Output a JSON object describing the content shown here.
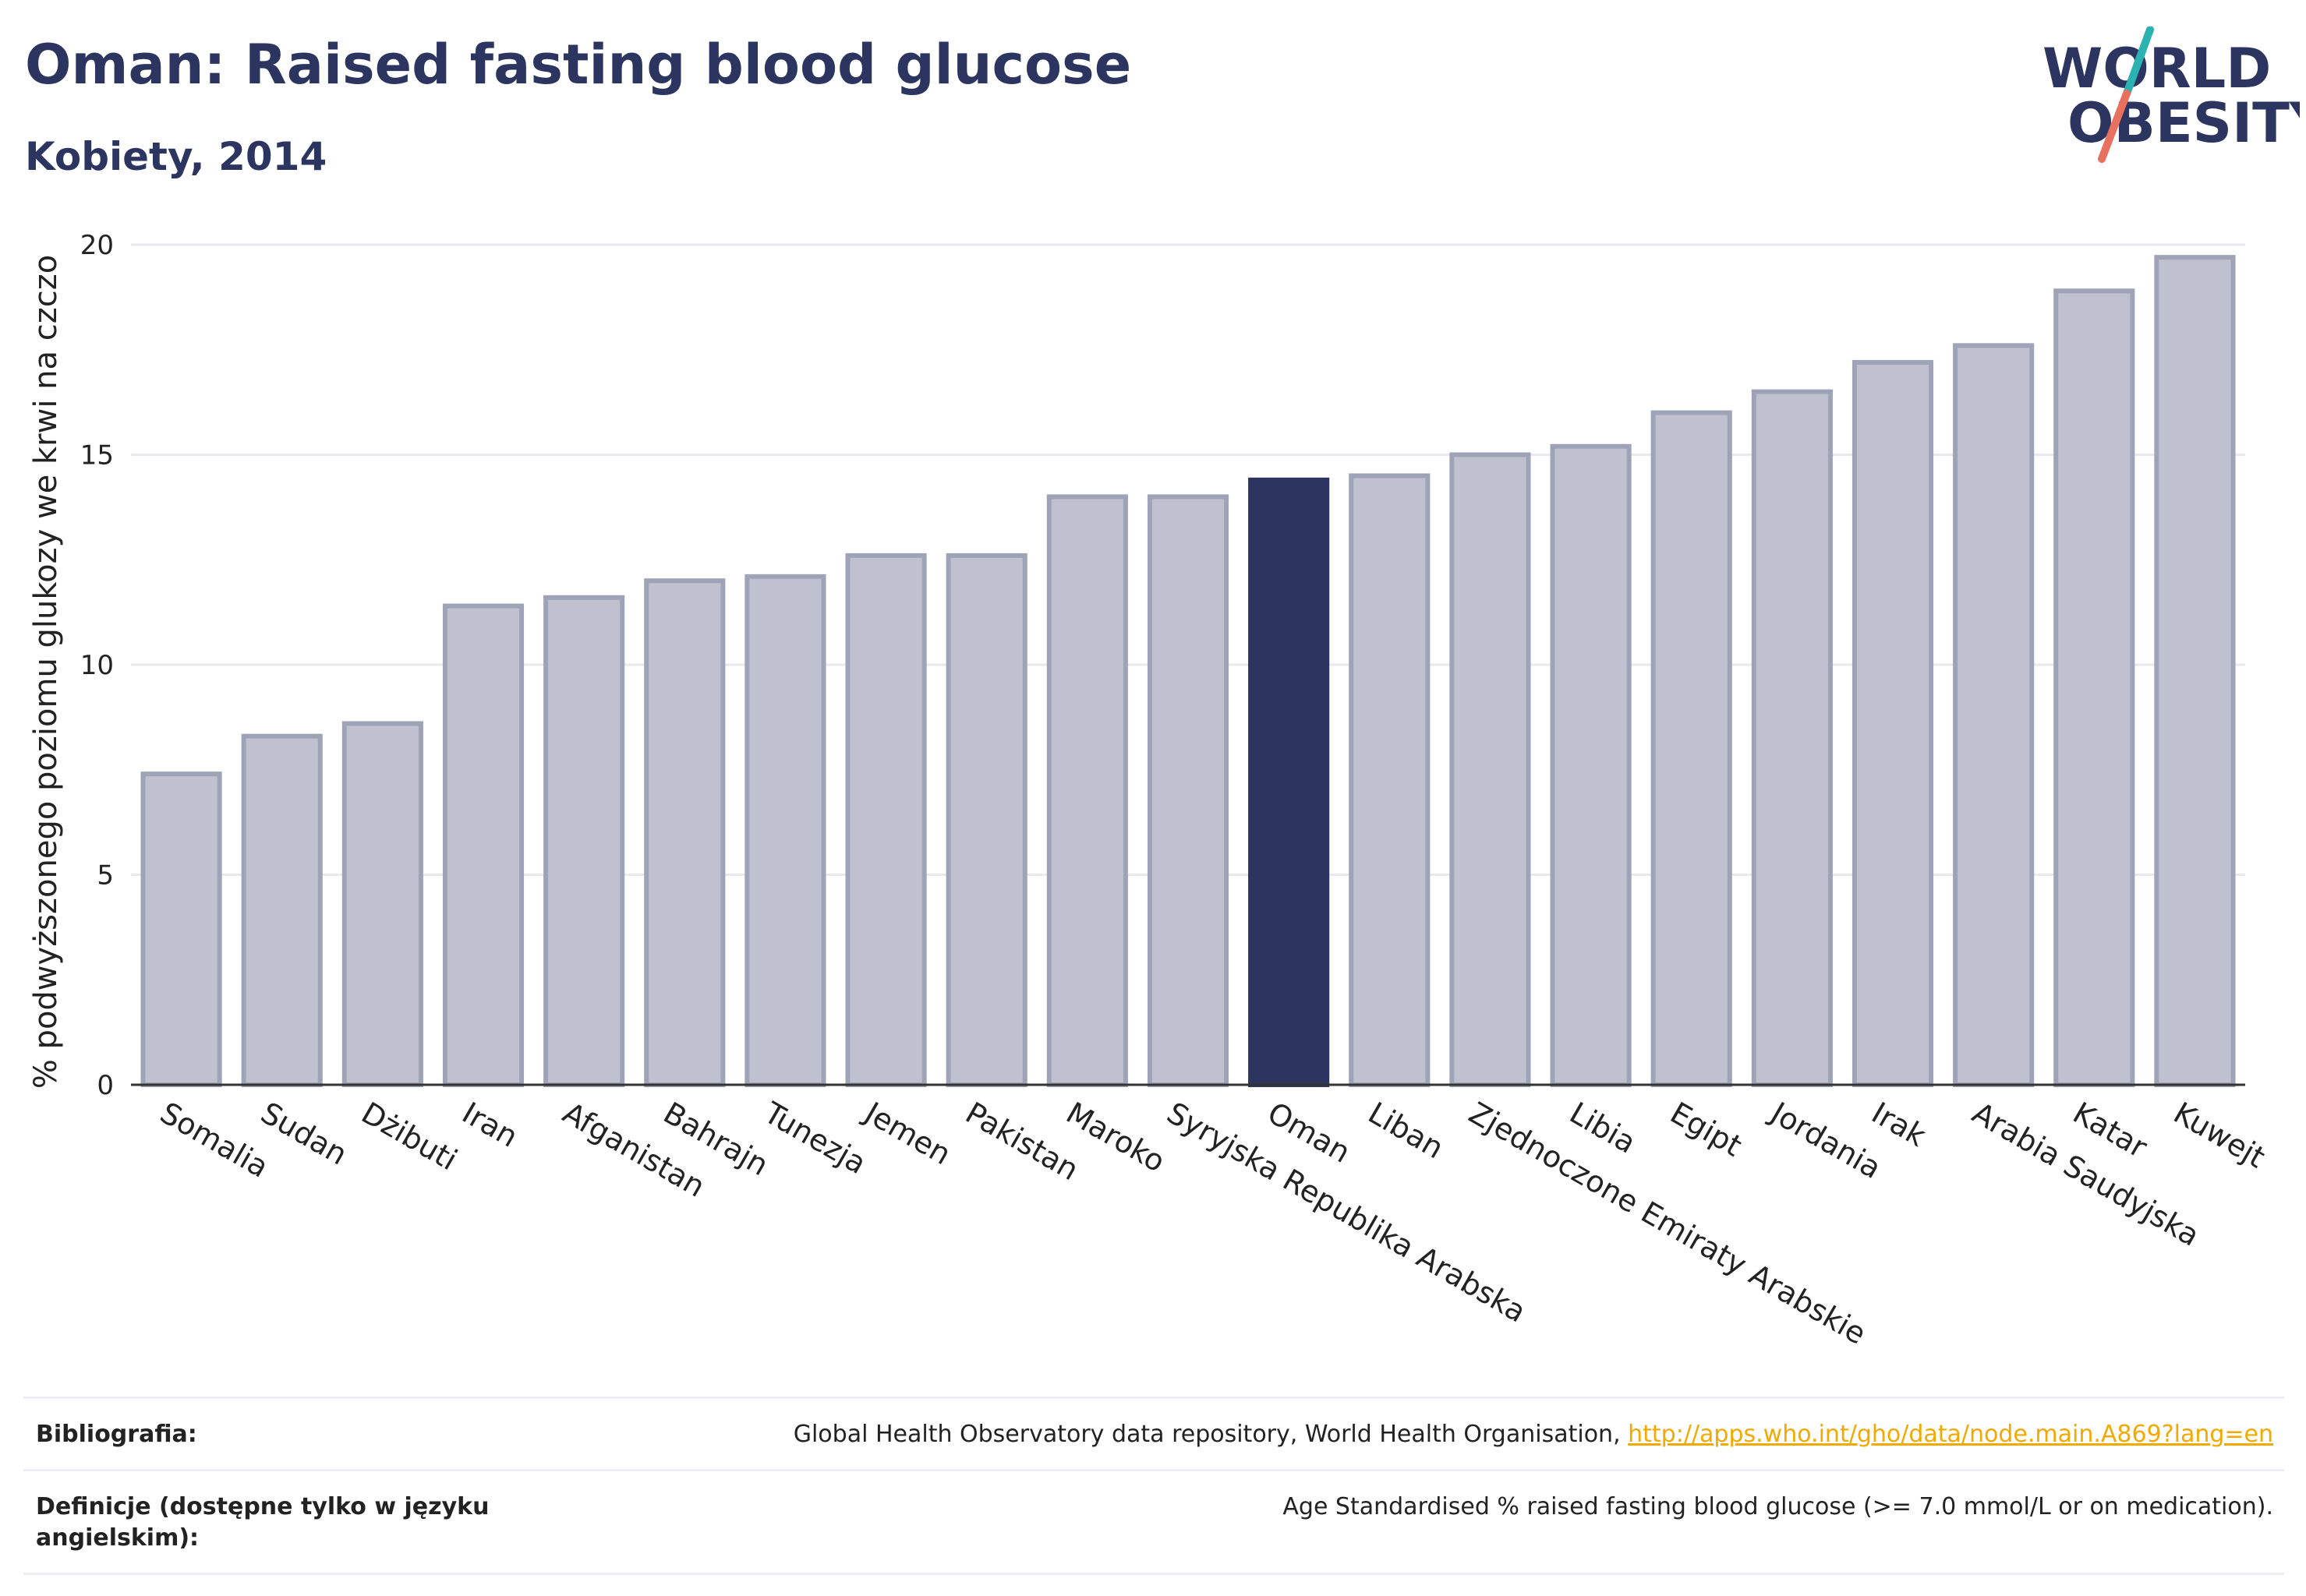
{
  "header": {
    "title": "Oman: Raised fasting blood glucose",
    "subtitle": "Kobiety, 2014"
  },
  "logo": {
    "line1": "WORLD",
    "line2": "OBESITY",
    "colors": {
      "text": "#2b3560",
      "slash_teal": "#2bb3b1",
      "slash_coral": "#e8705e"
    }
  },
  "chart_data": {
    "type": "bar",
    "title": "Oman: Raised fasting blood glucose",
    "subtitle": "Kobiety, 2014",
    "ylabel": "% podwyższonego poziomu glukozy we krwi na czczo",
    "xlabel": "",
    "ylim": [
      0,
      20
    ],
    "yticks": [
      0,
      5,
      10,
      15,
      20
    ],
    "grid": true,
    "highlight": "Oman",
    "colors": {
      "bar": "#bfc2ce",
      "bar_edge": "#9ea3b8",
      "highlight": "#2b3560",
      "grid": "#e9e9ee",
      "axis": "#333333"
    },
    "categories": [
      "Somalia",
      "Sudan",
      "Dżibuti",
      "Iran",
      "Afganistan",
      "Bahrajn",
      "Tunezja",
      "Jemen",
      "Pakistan",
      "Maroko",
      "Syryjska Republika Arabska",
      "Oman",
      "Liban",
      "Zjednoczone Emiraty Arabskie",
      "Libia",
      "Egipt",
      "Jordania",
      "Irak",
      "Arabia Saudyjska",
      "Katar",
      "Kuwejt"
    ],
    "values": [
      7.4,
      8.3,
      8.6,
      11.4,
      11.6,
      12.0,
      12.1,
      12.6,
      12.6,
      14.0,
      14.0,
      14.4,
      14.5,
      15.0,
      15.2,
      16.0,
      16.5,
      17.2,
      17.6,
      18.9,
      19.7
    ]
  },
  "footer": {
    "bibliography_label": "Bibliografia:",
    "bibliography_text": "Global Health Observatory data repository, World Health Organisation, ",
    "bibliography_link": "http://apps.who.int/gho/data/node.main.A869?lang=en",
    "definitions_label": "Definicje (dostępne tylko w języku angielskim):",
    "definitions_text": "Age Standardised % raised fasting blood glucose (>= 7.0 mmol/L or on medication)."
  }
}
